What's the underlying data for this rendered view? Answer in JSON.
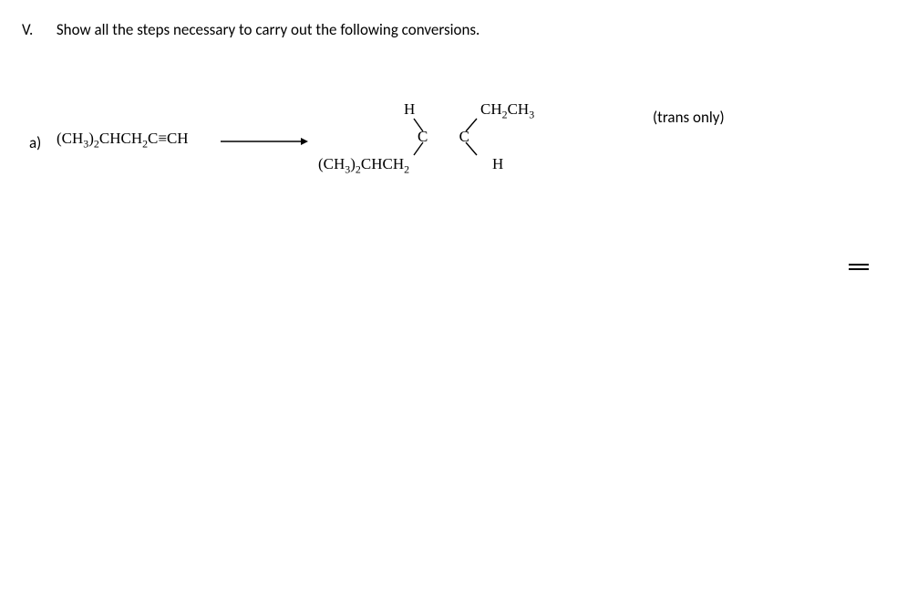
{
  "question": {
    "number": "V.",
    "text": "Show all the steps necessary to carry out the following conversions."
  },
  "part": {
    "label": "a)",
    "reactant_html": "(CH<sub>3</sub>)<sub>2</sub>CHCH<sub>2</sub>C≡CH",
    "product": {
      "top_left": "H",
      "top_right_html": "CH<sub>2</sub>CH<sub>3</sub>",
      "center_left": "C",
      "center_right": "C",
      "bottom_left_html": "(CH<sub>3</sub>)<sub>2</sub>CHCH<sub>2</sub>",
      "bottom_right": "H"
    },
    "note": "(trans only)"
  },
  "style": {
    "font_family_sans": "Calibri, Arial, sans-serif",
    "font_family_serif": "Times New Roman, serif",
    "text_color": "#000000",
    "background_color": "#ffffff",
    "arrow": {
      "length": 90,
      "stroke_width": 1.4,
      "color": "#000000"
    },
    "bond_lines": {
      "color": "#000000",
      "width": 1.4
    }
  }
}
